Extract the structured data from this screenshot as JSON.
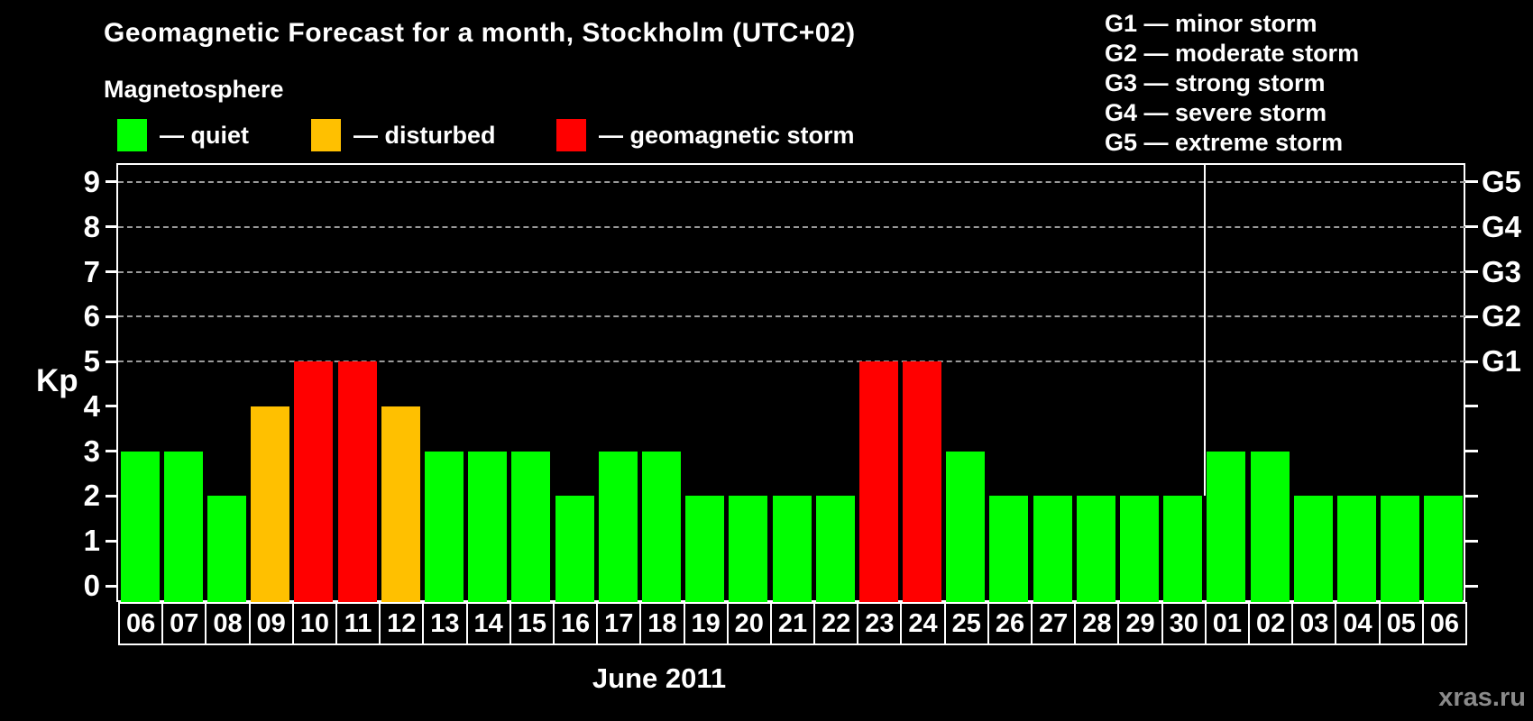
{
  "title": "Geomagnetic Forecast for a month, Stockholm (UTC+02)",
  "legend": {
    "heading": "Magnetosphere",
    "items": [
      {
        "status": "quiet",
        "color": "#00ff00",
        "label": "— quiet"
      },
      {
        "status": "disturbed",
        "color": "#ffc000",
        "label": "— disturbed"
      },
      {
        "status": "storm",
        "color": "#ff0000",
        "label": "— geomagnetic storm"
      }
    ]
  },
  "storm_scale_legend": [
    "G1 — minor storm",
    "G2 — moderate storm",
    "G3 — strong storm",
    "G4 — severe storm",
    "G5 — extreme storm"
  ],
  "watermark": "xras.ru",
  "chart_data": {
    "type": "bar",
    "title": "Geomagnetic Forecast for a month, Stockholm (UTC+02)",
    "ylabel": "Kp",
    "xlabel": "June 2011",
    "ylim": [
      0,
      9
    ],
    "yticks": [
      0,
      1,
      2,
      3,
      4,
      5,
      6,
      7,
      8,
      9
    ],
    "grid_kp_levels": [
      5,
      6,
      7,
      8,
      9
    ],
    "right_axis_g_labels": [
      {
        "kp": 5,
        "label": "G1"
      },
      {
        "kp": 6,
        "label": "G2"
      },
      {
        "kp": 7,
        "label": "G3"
      },
      {
        "kp": 8,
        "label": "G4"
      },
      {
        "kp": 9,
        "label": "G5"
      }
    ],
    "month_separator_after_index": 24,
    "categories": [
      "06",
      "07",
      "08",
      "09",
      "10",
      "11",
      "12",
      "13",
      "14",
      "15",
      "16",
      "17",
      "18",
      "19",
      "20",
      "21",
      "22",
      "23",
      "24",
      "25",
      "26",
      "27",
      "28",
      "29",
      "30",
      "01",
      "02",
      "03",
      "04",
      "05",
      "06"
    ],
    "series": [
      {
        "name": "Kp forecast",
        "points": [
          {
            "day": "06",
            "kp": 3,
            "status": "quiet"
          },
          {
            "day": "07",
            "kp": 3,
            "status": "quiet"
          },
          {
            "day": "08",
            "kp": 2,
            "status": "quiet"
          },
          {
            "day": "09",
            "kp": 4,
            "status": "disturbed"
          },
          {
            "day": "10",
            "kp": 5,
            "status": "storm"
          },
          {
            "day": "11",
            "kp": 5,
            "status": "storm"
          },
          {
            "day": "12",
            "kp": 4,
            "status": "disturbed"
          },
          {
            "day": "13",
            "kp": 3,
            "status": "quiet"
          },
          {
            "day": "14",
            "kp": 3,
            "status": "quiet"
          },
          {
            "day": "15",
            "kp": 3,
            "status": "quiet"
          },
          {
            "day": "16",
            "kp": 2,
            "status": "quiet"
          },
          {
            "day": "17",
            "kp": 3,
            "status": "quiet"
          },
          {
            "day": "18",
            "kp": 3,
            "status": "quiet"
          },
          {
            "day": "19",
            "kp": 2,
            "status": "quiet"
          },
          {
            "day": "20",
            "kp": 2,
            "status": "quiet"
          },
          {
            "day": "21",
            "kp": 2,
            "status": "quiet"
          },
          {
            "day": "22",
            "kp": 2,
            "status": "quiet"
          },
          {
            "day": "23",
            "kp": 5,
            "status": "storm"
          },
          {
            "day": "24",
            "kp": 5,
            "status": "storm"
          },
          {
            "day": "25",
            "kp": 3,
            "status": "quiet"
          },
          {
            "day": "26",
            "kp": 2,
            "status": "quiet"
          },
          {
            "day": "27",
            "kp": 2,
            "status": "quiet"
          },
          {
            "day": "28",
            "kp": 2,
            "status": "quiet"
          },
          {
            "day": "29",
            "kp": 2,
            "status": "quiet"
          },
          {
            "day": "30",
            "kp": 2,
            "status": "quiet"
          },
          {
            "day": "01",
            "kp": 3,
            "status": "quiet"
          },
          {
            "day": "02",
            "kp": 3,
            "status": "quiet"
          },
          {
            "day": "03",
            "kp": 2,
            "status": "quiet"
          },
          {
            "day": "04",
            "kp": 2,
            "status": "quiet"
          },
          {
            "day": "05",
            "kp": 2,
            "status": "quiet"
          },
          {
            "day": "06",
            "kp": 2,
            "status": "quiet"
          }
        ]
      }
    ]
  }
}
